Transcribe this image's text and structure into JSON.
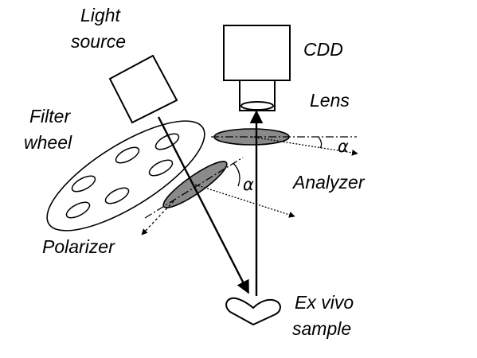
{
  "labels": {
    "light_source_line1": "Light",
    "light_source_line2": "source",
    "camera": "CDD",
    "lens": "Lens",
    "filter_wheel_line1": "Filter",
    "filter_wheel_line2": "wheel",
    "analyzer": "Analyzer",
    "polarizer": "Polarizer",
    "sample_line1": "Ex vivo",
    "sample_line2": "sample",
    "angle_analyzer": "α",
    "angle_polarizer": "α"
  },
  "colors": {
    "stroke": "#000000",
    "polarizer_fill": "#8a8a8a",
    "background": "#ffffff"
  }
}
